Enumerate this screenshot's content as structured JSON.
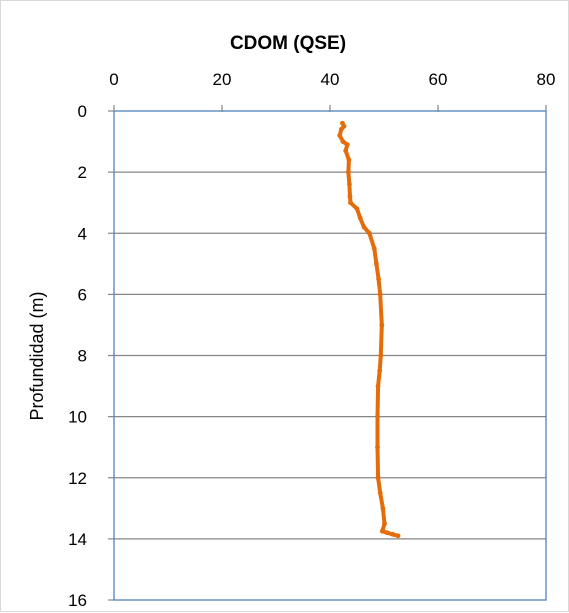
{
  "chart_data": {
    "type": "line",
    "title": "CDOM (QSE)",
    "xlabel": "",
    "ylabel": "Profundidad (m)",
    "x_axis_position": "top",
    "y_axis_reversed": true,
    "xlim": [
      0,
      80
    ],
    "ylim": [
      0,
      16
    ],
    "x_ticks": [
      0,
      20,
      40,
      60,
      80
    ],
    "y_ticks": [
      0,
      2,
      4,
      6,
      8,
      10,
      12,
      14,
      16
    ],
    "grid": {
      "horizontal": true,
      "vertical": false
    },
    "legend": "none",
    "colors": {
      "series": "#e46c0a",
      "grid": "#868686",
      "plot_border": "#4f81bd"
    },
    "series": [
      {
        "points": [
          {
            "x": 42.3,
            "y": 0.4
          },
          {
            "x": 42.6,
            "y": 0.5
          },
          {
            "x": 42.1,
            "y": 0.6
          },
          {
            "x": 41.8,
            "y": 0.8
          },
          {
            "x": 42.4,
            "y": 1.0
          },
          {
            "x": 43.2,
            "y": 1.1
          },
          {
            "x": 42.9,
            "y": 1.3
          },
          {
            "x": 43.5,
            "y": 1.6
          },
          {
            "x": 43.4,
            "y": 2.0
          },
          {
            "x": 43.6,
            "y": 2.4
          },
          {
            "x": 43.7,
            "y": 2.8
          },
          {
            "x": 43.8,
            "y": 3.0
          },
          {
            "x": 45.0,
            "y": 3.2
          },
          {
            "x": 45.6,
            "y": 3.5
          },
          {
            "x": 46.3,
            "y": 3.8
          },
          {
            "x": 47.3,
            "y": 4.0
          },
          {
            "x": 48.2,
            "y": 4.5
          },
          {
            "x": 48.6,
            "y": 5.0
          },
          {
            "x": 49.0,
            "y": 5.5
          },
          {
            "x": 49.3,
            "y": 6.0
          },
          {
            "x": 49.6,
            "y": 7.0
          },
          {
            "x": 49.4,
            "y": 8.0
          },
          {
            "x": 49.2,
            "y": 8.5
          },
          {
            "x": 48.9,
            "y": 9.0
          },
          {
            "x": 48.8,
            "y": 10.0
          },
          {
            "x": 48.8,
            "y": 11.0
          },
          {
            "x": 48.9,
            "y": 12.0
          },
          {
            "x": 49.3,
            "y": 12.5
          },
          {
            "x": 49.8,
            "y": 13.0
          },
          {
            "x": 50.1,
            "y": 13.5
          },
          {
            "x": 49.7,
            "y": 13.75
          },
          {
            "x": 50.6,
            "y": 13.8
          },
          {
            "x": 51.6,
            "y": 13.85
          },
          {
            "x": 52.6,
            "y": 13.9
          }
        ]
      }
    ]
  }
}
